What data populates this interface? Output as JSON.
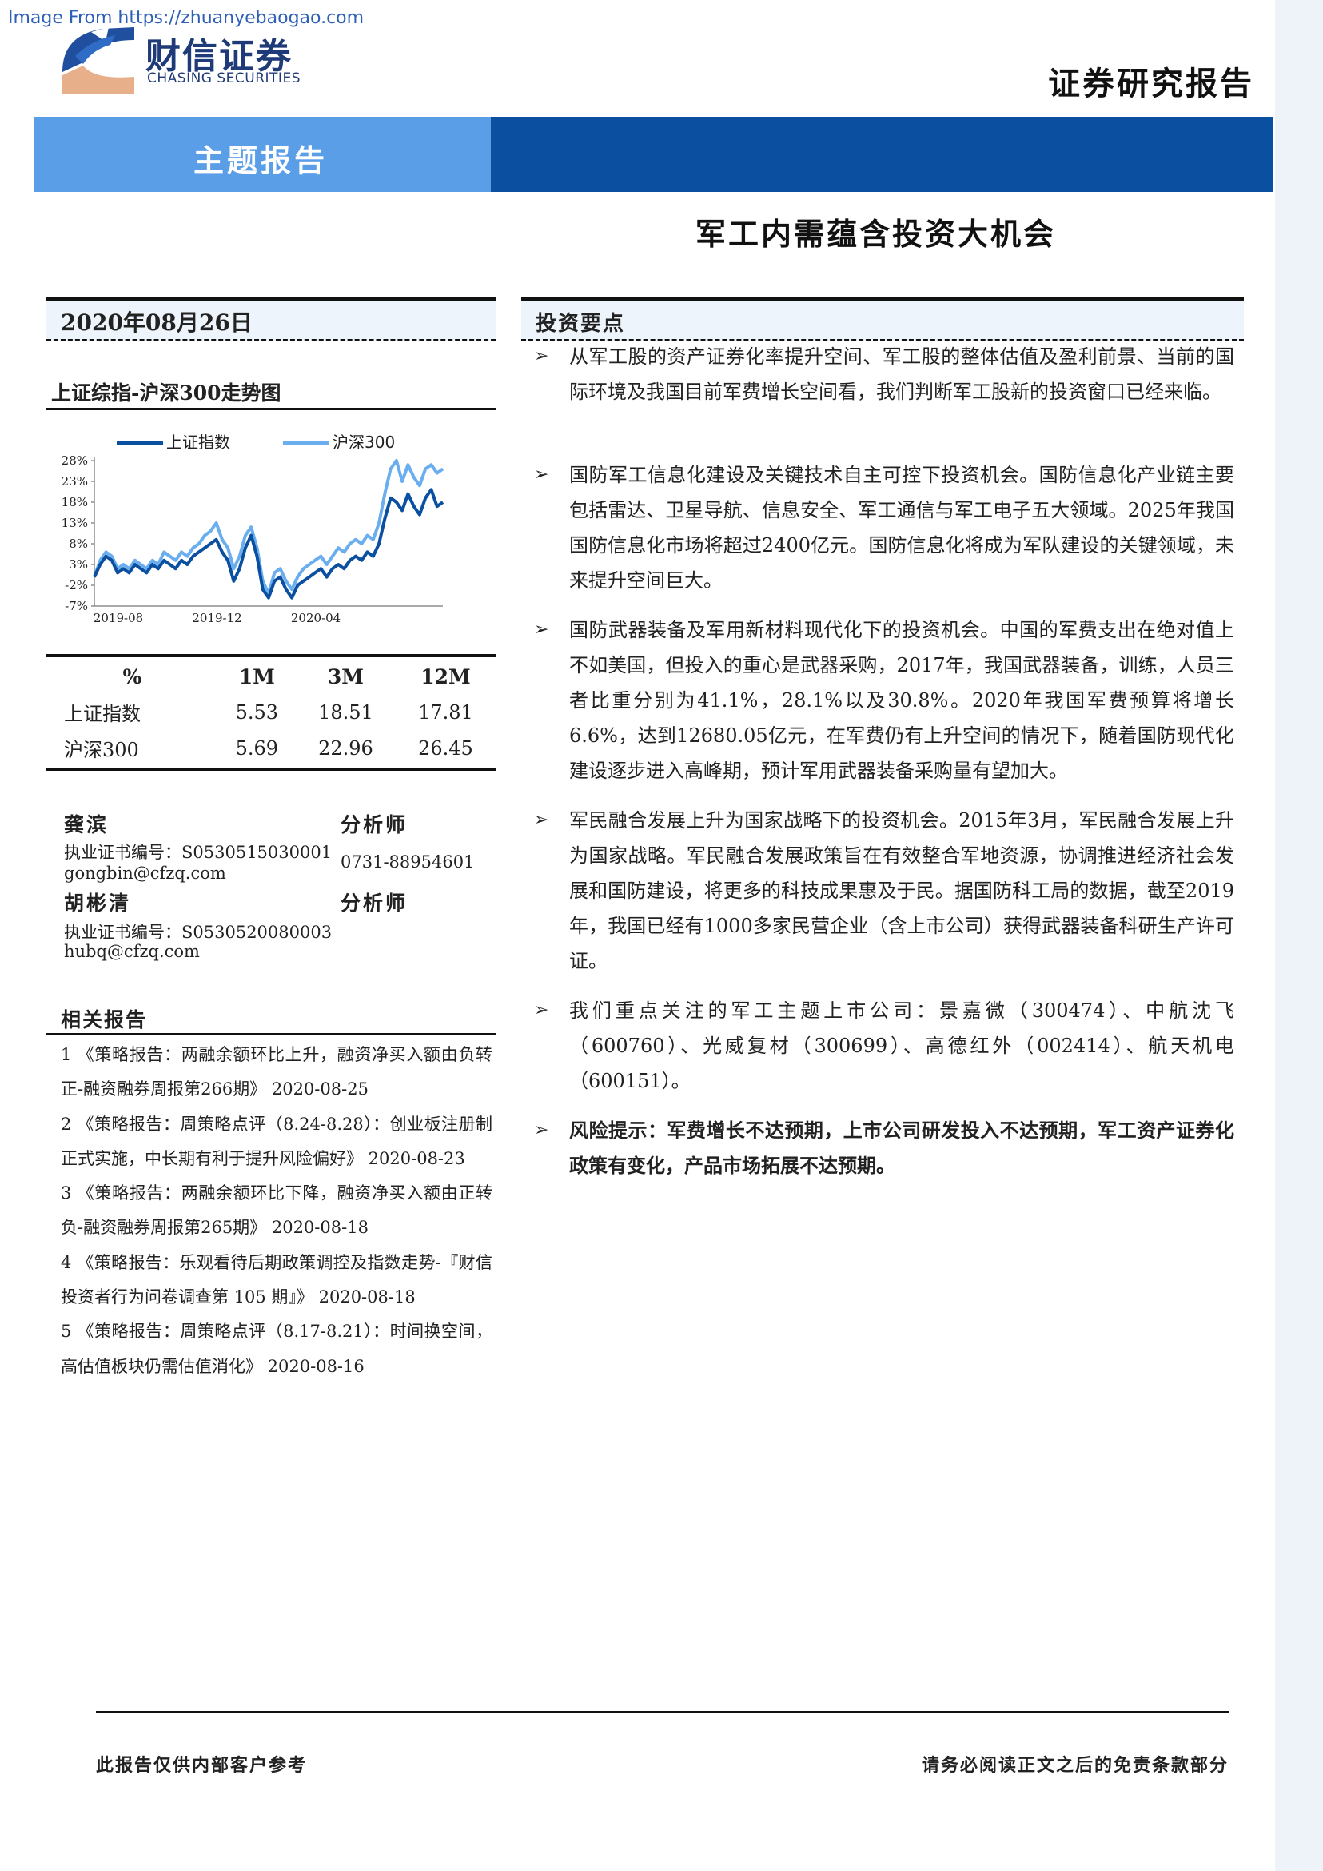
{
  "watermark": "Image From https://zhuanyebaogao.com",
  "brand": {
    "name_cn": "财信证券",
    "name_en": "CHASING SECURITIES"
  },
  "header": {
    "doc_type": "证券研究报告",
    "section_tag": "主题报告",
    "title": "军工内需蕴含投资大机会"
  },
  "sidebar": {
    "date": "2020年08月26日",
    "chart_title": "上证综指-沪深300走势图",
    "perf_table": {
      "headers": [
        "%",
        "1M",
        "3M",
        "12M"
      ],
      "rows": [
        [
          "上证指数",
          "5.53",
          "18.51",
          "17.81"
        ],
        [
          "沪深300",
          "5.69",
          "22.96",
          "26.45"
        ]
      ]
    },
    "analysts": [
      {
        "name": "龚滨",
        "role": "分析师",
        "license": "执业证书编号：S0530515030001",
        "email": "gongbin@cfzq.com",
        "phone": "0731-88954601"
      },
      {
        "name": "胡彬清",
        "role": "分析师",
        "license": "执业证书编号：S0530520080003",
        "email": "hubq@cfzq.com"
      }
    ],
    "related_title": "相关报告",
    "related": [
      "1 《策略报告：两融余额环比上升，融资净买入额由负转正-融资融券周报第266期》 2020-08-25",
      "2 《策略报告：周策略点评（8.24-8.28）：创业板注册制正式实施，中长期有利于提升风险偏好》 2020-08-23",
      "3 《策略报告：两融余额环比下降，融资净买入额由正转负-融资融券周报第265期》 2020-08-18",
      "4 《策略报告：乐观看待后期政策调控及指数走势-『财信投资者行为问卷调查第 105 期』》 2020-08-18",
      "5 《策略报告：周策略点评（8.17-8.21）：时间换空间，高估值板块仍需估值消化》 2020-08-16"
    ]
  },
  "investment": {
    "heading": "投资要点",
    "arrow": "➢",
    "points": [
      "从军工股的资产证券化率提升空间、军工股的整体估值及盈利前景、当前的国际环境及我国目前军费增长空间看，我们判断军工股新的投资窗口已经来临。",
      "国防军工信息化建设及关键技术自主可控下投资机会。国防信息化产业链主要包括雷达、卫星导航、信息安全、军工通信与军工电子五大领域。2025年我国国防信息化市场将超过2400亿元。国防信息化将成为军队建设的关键领域，未来提升空间巨大。",
      "国防武器装备及军用新材料现代化下的投资机会。中国的军费支出在绝对值上不如美国，但投入的重心是武器采购，2017年，我国武器装备，训练，人员三者比重分别为41.1%，28.1%以及30.8%。2020年我国军费预算将增长6.6%，达到12680.05亿元，在军费仍有上升空间的情况下，随着国防现代化建设逐步进入高峰期，预计军用武器装备采购量有望加大。",
      "军民融合发展上升为国家战略下的投资机会。2015年3月，军民融合发展上升为国家战略。军民融合发展政策旨在有效整合军地资源，协调推进经济社会发展和国防建设，将更多的科技成果惠及于民。据国防科工局的数据，截至2019年，我国已经有1000多家民营企业（含上市公司）获得武器装备科研生产许可证。",
      "我们重点关注的军工主题上市公司：景嘉微（300474）、中航沈飞（600760）、光威复材（300699）、高德红外（002414）、航天机电（600151）。"
    ],
    "risk": "风险提示：军费增长不达预期，上市公司研发投入不达预期，军工资产证券化政策有变化，产品市场拓展不达预期。"
  },
  "footer": {
    "left": "此报告仅供内部客户参考",
    "right": "请务必阅读正文之后的免责条款部分"
  },
  "colors": {
    "banner_light": "#5b9ee8",
    "banner_dark": "#0b4fa0",
    "series_sse": "#0b4fa0",
    "series_csi300": "#6aaef0"
  },
  "chart_data": {
    "type": "line",
    "title": "上证综指-沪深300走势图",
    "ylim": [
      -7,
      28
    ],
    "y_ticks": [
      "28%",
      "23%",
      "18%",
      "13%",
      "8%",
      "3%",
      "-2%",
      "-7%"
    ],
    "y_tick_values": [
      28,
      23,
      18,
      13,
      8,
      3,
      -2,
      -7
    ],
    "x_ticks": [
      "2019-08",
      "2019-12",
      "2020-04"
    ],
    "x_tick_index": [
      0,
      17,
      34
    ],
    "legend_position": "top",
    "series": [
      {
        "name": "上证指数",
        "values": [
          0,
          3,
          5,
          4,
          1,
          2,
          1,
          3,
          2,
          1,
          3,
          2,
          4,
          3,
          2,
          4,
          3,
          5,
          6,
          7,
          8,
          9,
          6,
          4,
          -1,
          2,
          7,
          10,
          5,
          -3,
          -5,
          -1,
          0,
          -3,
          -5,
          -2,
          -1,
          0,
          1,
          2,
          0,
          2,
          3,
          2,
          4,
          5,
          4,
          6,
          5,
          8,
          14,
          19,
          18,
          16,
          20,
          17,
          15,
          19,
          21,
          17,
          18
        ]
      },
      {
        "name": "沪深300",
        "values": [
          0,
          4,
          6,
          5,
          2,
          3,
          2,
          4,
          3,
          2,
          4,
          3,
          6,
          5,
          4,
          6,
          5,
          7,
          8,
          10,
          11,
          13,
          9,
          7,
          2,
          5,
          10,
          12,
          7,
          -1,
          -4,
          1,
          2,
          -1,
          -3,
          0,
          2,
          3,
          4,
          5,
          3,
          5,
          7,
          6,
          8,
          9,
          8,
          10,
          9,
          13,
          20,
          26,
          28,
          23,
          27,
          24,
          22,
          26,
          27,
          25,
          26
        ]
      }
    ]
  }
}
